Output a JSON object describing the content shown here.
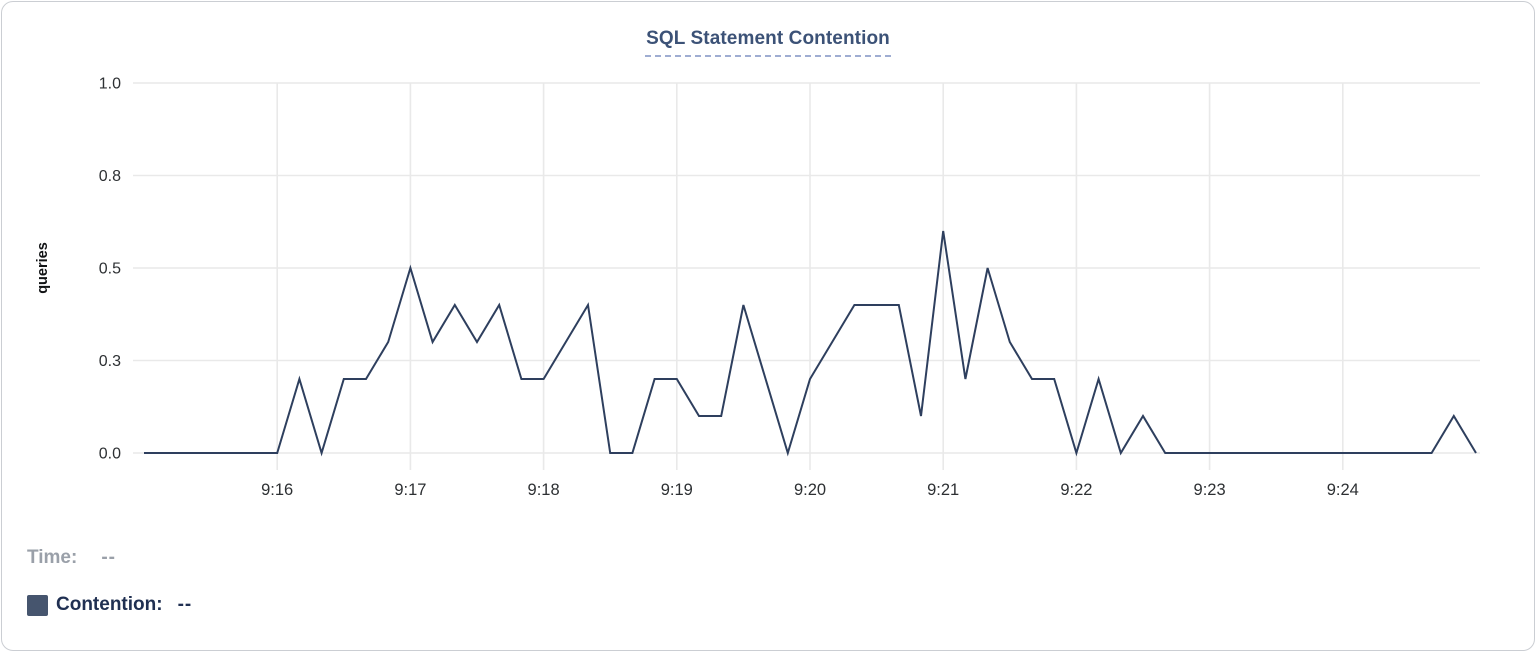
{
  "chart": {
    "title": "SQL Statement Contention"
  },
  "legend": {
    "time_label": "Time:",
    "time_value": "--",
    "contention_label": "Contention:",
    "contention_value": "--"
  },
  "chart_data": {
    "type": "line",
    "title": "SQL Statement Contention",
    "xlabel": "",
    "ylabel": "queries",
    "series_name": "Contention",
    "line_color": "#2e3f5e",
    "grid": true,
    "ylim": [
      0,
      1
    ],
    "y_ticks": [
      {
        "label": "1.0",
        "value": 1.0
      },
      {
        "label": "0.8",
        "value": 0.75
      },
      {
        "label": "0.5",
        "value": 0.5
      },
      {
        "label": "0.3",
        "value": 0.25
      },
      {
        "label": "0.0",
        "value": 0.0
      }
    ],
    "x_start_time": "9:15:00",
    "x_end_time": "9:25:00",
    "sample_interval_seconds": 10,
    "x_ticks": [
      {
        "label": "9:16",
        "offset_seconds": 60
      },
      {
        "label": "9:17",
        "offset_seconds": 120
      },
      {
        "label": "9:18",
        "offset_seconds": 180
      },
      {
        "label": "9:19",
        "offset_seconds": 240
      },
      {
        "label": "9:20",
        "offset_seconds": 300
      },
      {
        "label": "9:21",
        "offset_seconds": 360
      },
      {
        "label": "9:22",
        "offset_seconds": 420
      },
      {
        "label": "9:23",
        "offset_seconds": 480
      },
      {
        "label": "9:24",
        "offset_seconds": 540
      }
    ],
    "values": [
      0,
      0,
      0,
      0,
      0,
      0,
      0,
      0.2,
      0,
      0.2,
      0.2,
      0.3,
      0.5,
      0.3,
      0.4,
      0.3,
      0.4,
      0.2,
      0.2,
      0.3,
      0.4,
      0,
      0,
      0.2,
      0.2,
      0.1,
      0.1,
      0.4,
      0.2,
      0,
      0.2,
      0.3,
      0.4,
      0.4,
      0.4,
      0.1,
      0.6,
      0.2,
      0.5,
      0.3,
      0.2,
      0.2,
      0,
      0.2,
      0,
      0.1,
      0,
      0,
      0,
      0,
      0,
      0,
      0,
      0,
      0,
      0,
      0,
      0,
      0,
      0.1,
      0
    ]
  },
  "colors": {
    "line": "#2e3f5e",
    "gridline": "#e9e9e9",
    "tick_text": "#2d3033",
    "axis_label_text": "#101214",
    "title": "#3c5277",
    "title_underline": "#9fadd2",
    "legend_gray": "#9aa0a9",
    "legend_navy": "#203052",
    "swatch": "#46556e"
  }
}
